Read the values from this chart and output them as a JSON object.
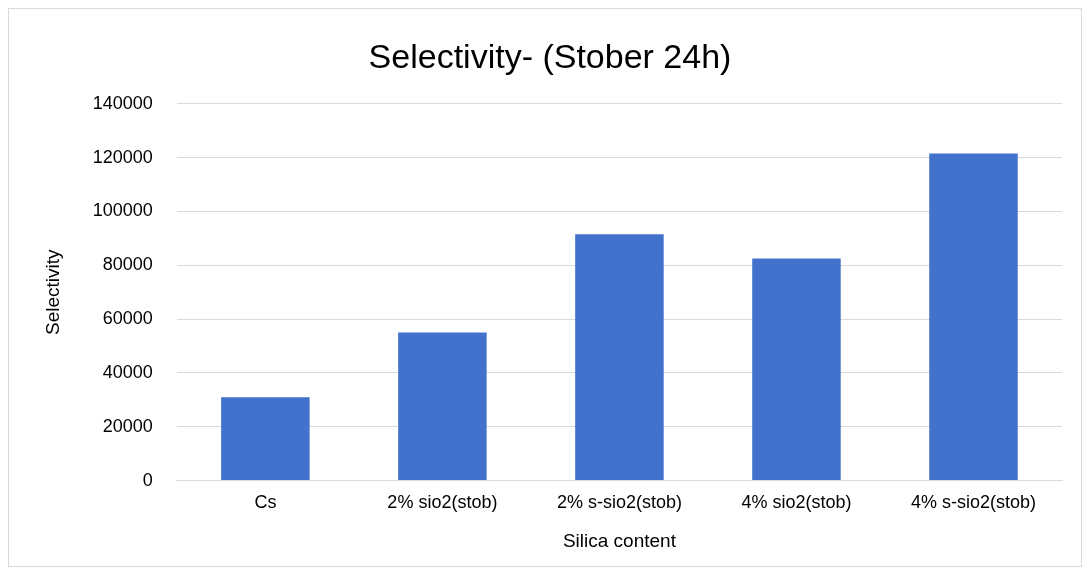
{
  "chart_data": {
    "type": "bar",
    "title": "Selectivity- (Stober 24h)",
    "xlabel": "Silica content",
    "ylabel": "Selectivity",
    "categories": [
      "Cs",
      "2% sio2(stob)",
      "2% s-sio2(stob)",
      "4% sio2(stob)",
      "4% s-sio2(stob)"
    ],
    "values": [
      31000,
      55000,
      91500,
      82500,
      121500
    ],
    "color": "#4272cc",
    "ylim": [
      0,
      140000
    ],
    "yticks": [
      0,
      20000,
      40000,
      60000,
      80000,
      100000,
      120000,
      140000
    ],
    "grid": "y"
  }
}
